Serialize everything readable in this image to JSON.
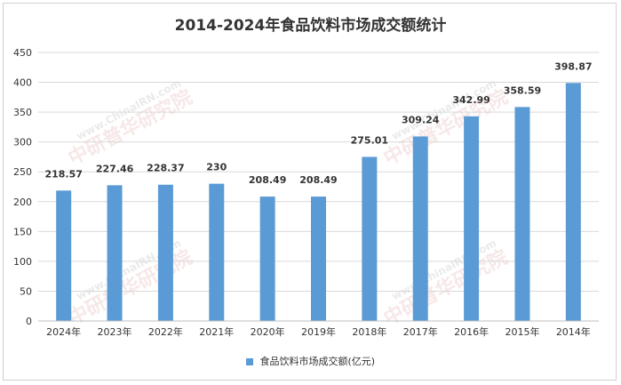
{
  "chart_data": {
    "type": "bar",
    "title": "2014-2024年食品饮料市场成交额统计",
    "categories": [
      "2024年",
      "2023年",
      "2022年",
      "2021年",
      "2020年",
      "2019年",
      "2018年",
      "2017年",
      "2016年",
      "2015年",
      "2014年"
    ],
    "series": [
      {
        "name": "食品饮料市场成交额(亿元)",
        "values": [
          218.57,
          227.46,
          228.37,
          230,
          208.49,
          208.49,
          275.01,
          309.24,
          342.99,
          358.59,
          398.87
        ],
        "labels": [
          "218.57",
          "227.46",
          "228.37",
          "230",
          "208.49",
          "208.49",
          "275.01",
          "309.24",
          "342.99",
          "358.59",
          "398.87"
        ],
        "color": "#5b9bd5"
      }
    ],
    "ylim": [
      0,
      450
    ],
    "yticks": [
      0,
      50,
      100,
      150,
      200,
      250,
      300,
      350,
      400,
      450
    ],
    "grid": true,
    "legend": "bottom",
    "watermark": "中研普华研究院 www.ChinaIRN.com"
  }
}
